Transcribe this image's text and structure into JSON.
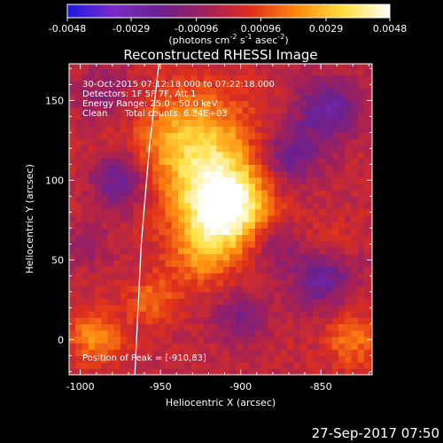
{
  "colorbar": {
    "tick_labels": [
      "-0.0048",
      "-0.0029",
      "-0.00096",
      "0.00096",
      "0.0029",
      "0.0048"
    ],
    "values": [
      -0.0048,
      -0.0029,
      -0.00096,
      0.00096,
      0.0029,
      0.0048
    ],
    "range": [
      -0.0048,
      0.0048
    ],
    "units_main": "(photons cm",
    "units_sup1": "-2",
    "units_mid": " s",
    "units_sup2": "-1",
    "units_end": " asec",
    "units_sup3": "-2",
    "units_close": ")",
    "colors": [
      "#1a1ae0",
      "#7a2cc8",
      "#6a2090",
      "#a0205a",
      "#e0301a",
      "#ff8a10",
      "#ffe040",
      "#ffffff"
    ]
  },
  "annotations": {
    "line1": "30-Oct-2015 07:12:18.000 to 07:22:18.000",
    "line2": "Detectors: 1F 5F 7F, Att 1",
    "line3": "Energy Range: 25.0 - 50.0 keV",
    "line4": "Clean      Total counts: 6.34E+03",
    "peak": "Position of Peak = [-910,83]"
  },
  "footer": {
    "timestamp": "27-Sep-2017 07:50"
  },
  "chart_data": {
    "type": "heatmap",
    "title": "Reconstructed RHESSI Image",
    "xlabel": "Heliocentric X (arcsec)",
    "ylabel": "Heliocentric Y (arcsec)",
    "xlim": [
      -1007,
      -818
    ],
    "ylim": [
      -22,
      173
    ],
    "x_ticks": [
      -1000,
      -950,
      -900,
      -850
    ],
    "x_tick_labels": [
      "-1000",
      "-950",
      "-900",
      "-850"
    ],
    "y_ticks": [
      0,
      50,
      100,
      150
    ],
    "y_tick_labels": [
      "0",
      "50",
      "100",
      "150"
    ],
    "peak": [
      -910,
      83
    ],
    "limb_curve": [
      [
        -966,
        -22
      ],
      [
        -962,
        60
      ],
      [
        -957,
        120
      ],
      [
        -951,
        173
      ]
    ],
    "sources": [
      {
        "x": -910,
        "y": 83,
        "sigma": 18,
        "amp": 0.0048
      },
      {
        "x": -932,
        "y": 125,
        "sigma": 22,
        "amp": 0.0021
      },
      {
        "x": -918,
        "y": 110,
        "sigma": 28,
        "amp": 0.0015
      },
      {
        "x": -925,
        "y": 52,
        "sigma": 15,
        "amp": 0.0016
      },
      {
        "x": -990,
        "y": 2,
        "sigma": 12,
        "amp": 0.0021
      },
      {
        "x": -955,
        "y": 25,
        "sigma": 10,
        "amp": 0.0016
      },
      {
        "x": -830,
        "y": 0,
        "sigma": 12,
        "amp": 0.0017
      },
      {
        "x": -845,
        "y": 60,
        "sigma": 10,
        "amp": 0.0009
      },
      {
        "x": -975,
        "y": 100,
        "sigma": 12,
        "amp": -0.0024
      },
      {
        "x": -870,
        "y": 115,
        "sigma": 14,
        "amp": -0.0022
      },
      {
        "x": -845,
        "y": 145,
        "sigma": 14,
        "amp": -0.0024
      },
      {
        "x": -850,
        "y": 40,
        "sigma": 14,
        "amp": -0.0022
      },
      {
        "x": -880,
        "y": 60,
        "sigma": 10,
        "amp": -0.0014
      },
      {
        "x": -900,
        "y": 15,
        "sigma": 12,
        "amp": -0.0016
      },
      {
        "x": -995,
        "y": 60,
        "sigma": 10,
        "amp": -0.001
      },
      {
        "x": -985,
        "y": 155,
        "sigma": 12,
        "amp": -0.0012
      }
    ]
  }
}
